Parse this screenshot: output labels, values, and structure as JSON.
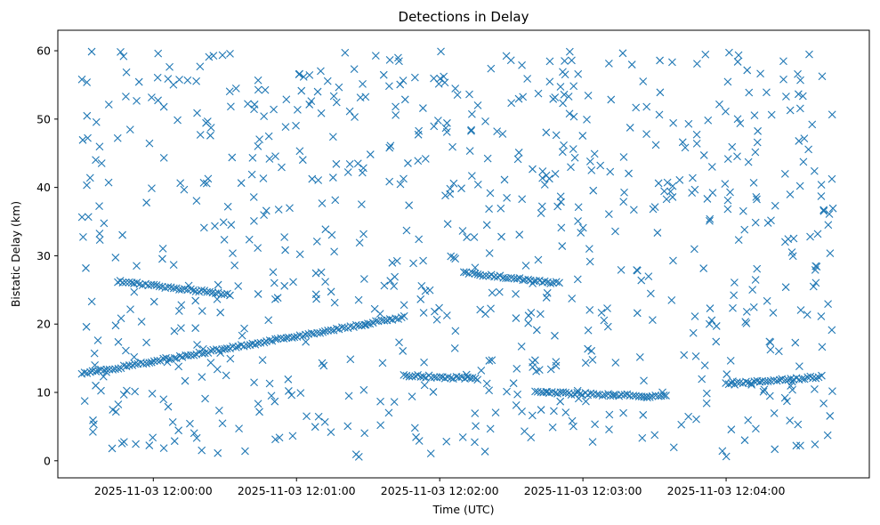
{
  "chart_data": {
    "type": "scatter",
    "title": "Detections in Delay",
    "xlabel": "Time (UTC)",
    "ylabel": "Bistatic Delay (km)",
    "x_axis_kind": "datetime",
    "x_start": "2025-11-03 11:59:20",
    "x_end": "2025-11-03 12:05:00",
    "ylim": [
      -2.5,
      63
    ],
    "xticks": [
      {
        "time": "2025-11-03 12:00:00",
        "label": "2025-11-03 12:00:00"
      },
      {
        "time": "2025-11-03 12:01:00",
        "label": "2025-11-03 12:01:00"
      },
      {
        "time": "2025-11-03 12:02:00",
        "label": "2025-11-03 12:02:00"
      },
      {
        "time": "2025-11-03 12:03:00",
        "label": "2025-11-03 12:03:00"
      },
      {
        "time": "2025-11-03 12:04:00",
        "label": "2025-11-03 12:04:00"
      }
    ],
    "yticks": [
      0,
      10,
      20,
      30,
      40,
      50,
      60
    ],
    "grid": false,
    "marker": "x",
    "marker_color": "#1f77b4",
    "tracks": [
      {
        "start": "2025-11-03 11:59:30",
        "end": "2025-11-03 12:01:45",
        "y_start": 12.7,
        "y_end": 21.0
      },
      {
        "start": "2025-11-03 11:59:45",
        "end": "2025-11-03 12:00:32",
        "y_start": 26.3,
        "y_end": 24.3
      },
      {
        "start": "2025-11-03 12:01:45",
        "end": "2025-11-03 12:02:15",
        "y_start": 12.5,
        "y_end": 12.0
      },
      {
        "start": "2025-11-03 12:02:10",
        "end": "2025-11-03 12:02:50",
        "y_start": 27.5,
        "y_end": 26.0
      },
      {
        "start": "2025-11-03 12:02:40",
        "end": "2025-11-03 12:03:35",
        "y_start": 10.0,
        "y_end": 9.4
      },
      {
        "start": "2025-11-03 12:04:00",
        "end": "2025-11-03 12:04:40",
        "y_start": 11.2,
        "y_end": 12.3
      }
    ],
    "clutter_y_range": [
      0.5,
      59.9
    ]
  }
}
